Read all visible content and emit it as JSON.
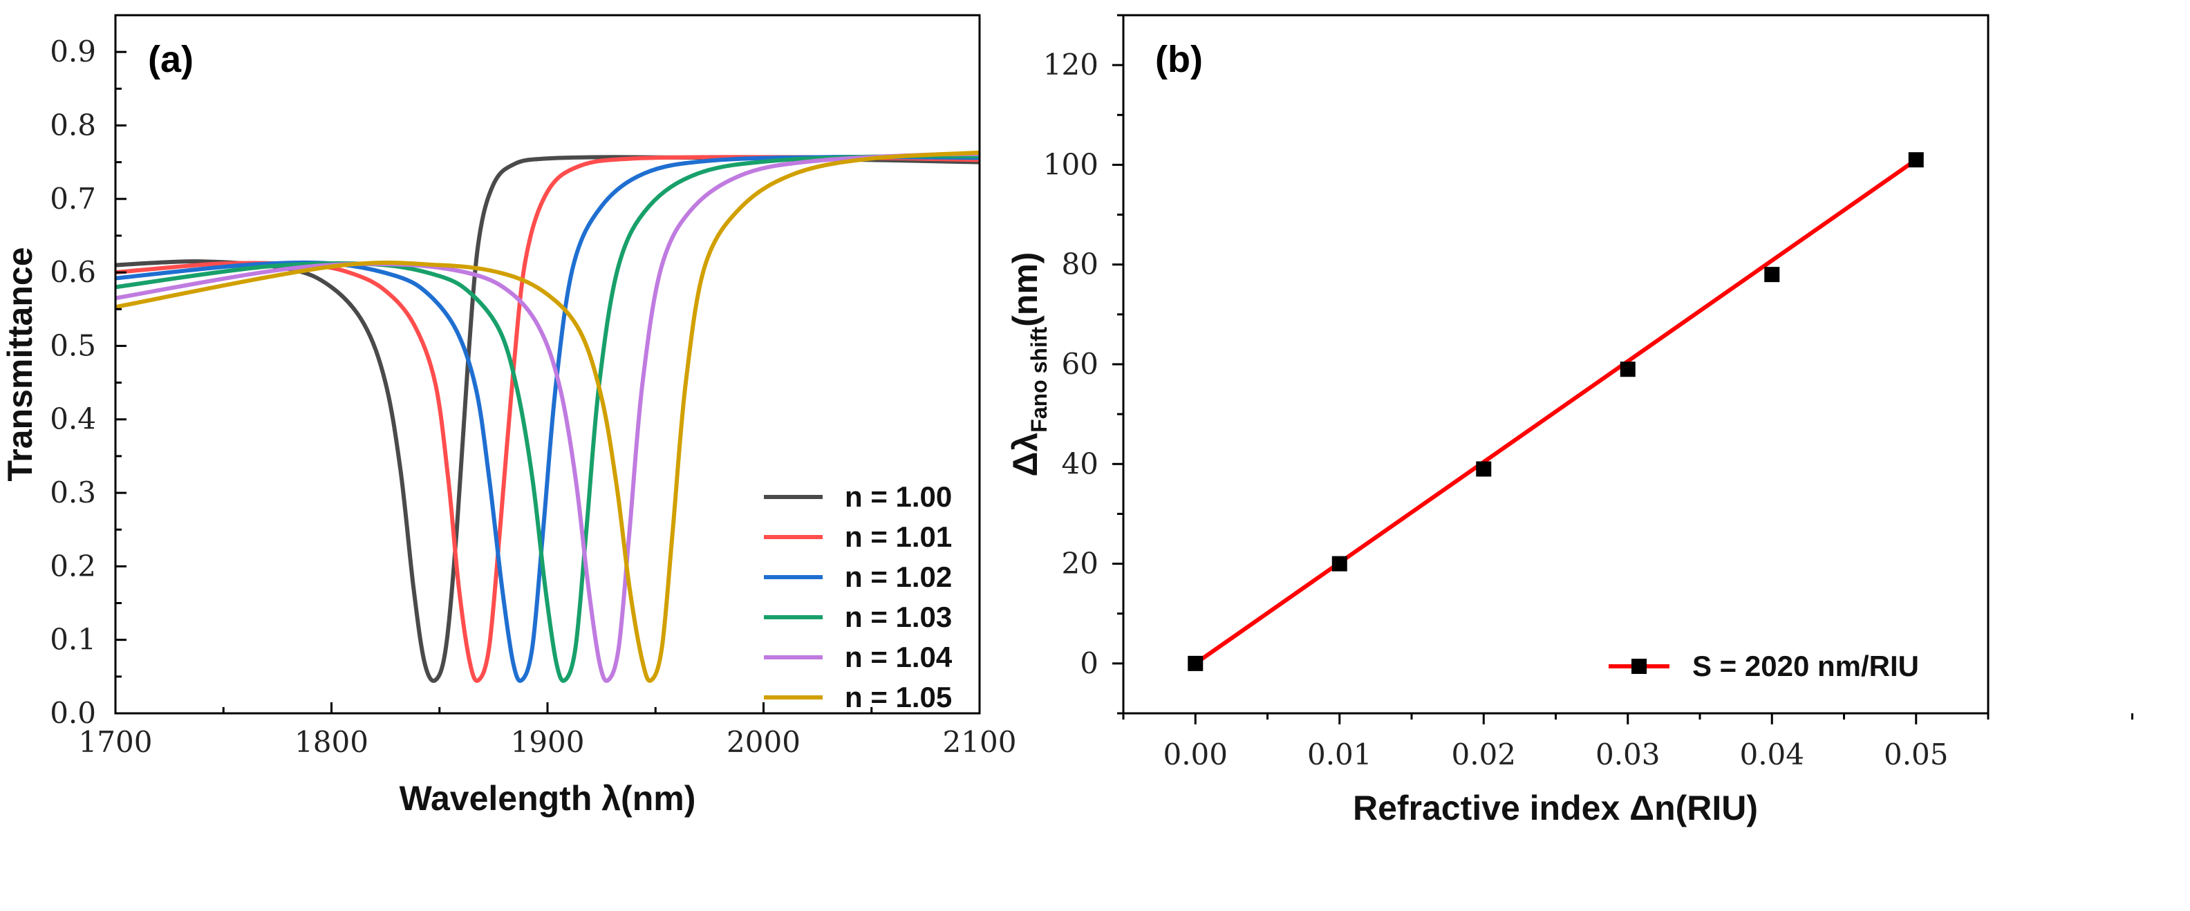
{
  "chart_data": [
    {
      "type": "line",
      "panel_label": "(a)",
      "xlabel": "Wavelength λ(nm)",
      "ylabel": "Transmittance",
      "xlim": [
        1700,
        2100
      ],
      "ylim": [
        0.0,
        0.95
      ],
      "x_ticks": [
        "1700",
        "1800",
        "1900",
        "2000",
        "2100"
      ],
      "y_ticks": [
        "0.0",
        "0.1",
        "0.2",
        "0.3",
        "0.4",
        "0.5",
        "0.6",
        "0.7",
        "0.8",
        "0.9"
      ],
      "grid": false,
      "legend_position": "lower-right",
      "series": [
        {
          "name": "n = 1.00",
          "color": "#4a4a4a",
          "x": [
            1700,
            1740,
            1780,
            1800,
            1815,
            1825,
            1832,
            1838,
            1843,
            1848,
            1853,
            1858,
            1863,
            1868,
            1875,
            1885,
            1900,
            1930,
            1980,
            2050,
            2100
          ],
          "y": [
            0.61,
            0.615,
            0.605,
            0.58,
            0.53,
            0.45,
            0.33,
            0.17,
            0.07,
            0.045,
            0.09,
            0.25,
            0.47,
            0.64,
            0.72,
            0.748,
            0.755,
            0.757,
            0.756,
            0.753,
            0.75
          ]
        },
        {
          "name": "n = 1.01",
          "color": "#ff4d4d",
          "x": [
            1700,
            1750,
            1790,
            1810,
            1825,
            1838,
            1848,
            1854,
            1859,
            1864,
            1868,
            1873,
            1878,
            1884,
            1890,
            1900,
            1915,
            1940,
            1990,
            2050,
            2100
          ],
          "y": [
            0.6,
            0.612,
            0.61,
            0.598,
            0.575,
            0.53,
            0.45,
            0.32,
            0.17,
            0.07,
            0.045,
            0.09,
            0.25,
            0.46,
            0.62,
            0.71,
            0.745,
            0.755,
            0.757,
            0.756,
            0.753
          ]
        },
        {
          "name": "n = 1.02",
          "color": "#1f6fd1",
          "x": [
            1700,
            1760,
            1800,
            1830,
            1845,
            1858,
            1867,
            1873,
            1879,
            1884,
            1888,
            1893,
            1898,
            1904,
            1912,
            1925,
            1945,
            1975,
            2030,
            2100
          ],
          "y": [
            0.592,
            0.61,
            0.612,
            0.595,
            0.57,
            0.52,
            0.44,
            0.32,
            0.17,
            0.07,
            0.045,
            0.09,
            0.25,
            0.45,
            0.61,
            0.69,
            0.735,
            0.752,
            0.757,
            0.756
          ]
        },
        {
          "name": "n = 1.03",
          "color": "#18a06a",
          "x": [
            1700,
            1770,
            1820,
            1850,
            1865,
            1878,
            1886,
            1893,
            1899,
            1904,
            1908,
            1913,
            1918,
            1924,
            1933,
            1947,
            1970,
            2005,
            2060,
            2100
          ],
          "y": [
            0.58,
            0.608,
            0.611,
            0.595,
            0.57,
            0.52,
            0.44,
            0.32,
            0.17,
            0.07,
            0.045,
            0.09,
            0.25,
            0.45,
            0.61,
            0.69,
            0.735,
            0.752,
            0.758,
            0.758
          ]
        },
        {
          "name": "n = 1.04",
          "color": "#c07be0",
          "x": [
            1700,
            1780,
            1830,
            1865,
            1884,
            1897,
            1906,
            1913,
            1919,
            1924,
            1928,
            1933,
            1938,
            1944,
            1953,
            1968,
            1992,
            2025,
            2075,
            2100
          ],
          "y": [
            0.565,
            0.605,
            0.611,
            0.598,
            0.57,
            0.52,
            0.44,
            0.32,
            0.17,
            0.07,
            0.045,
            0.09,
            0.25,
            0.45,
            0.61,
            0.69,
            0.735,
            0.752,
            0.76,
            0.761
          ]
        },
        {
          "name": "n = 1.05",
          "color": "#d1a000",
          "x": [
            1700,
            1800,
            1850,
            1880,
            1900,
            1915,
            1925,
            1932,
            1938,
            1944,
            1948,
            1953,
            1958,
            1964,
            1973,
            1990,
            2015,
            2050,
            2100
          ],
          "y": [
            0.553,
            0.608,
            0.61,
            0.598,
            0.57,
            0.52,
            0.43,
            0.31,
            0.17,
            0.07,
            0.045,
            0.09,
            0.25,
            0.45,
            0.61,
            0.69,
            0.735,
            0.755,
            0.763
          ]
        }
      ]
    },
    {
      "type": "scatter",
      "panel_label": "(b)",
      "xlabel": "Refractive index Δn(RIU)",
      "ylabel_main": "Δλ",
      "ylabel_sub": "Fano shift",
      "ylabel_unit": "(nm)",
      "xlim": [
        -0.005,
        0.055
      ],
      "ylim": [
        -10,
        130
      ],
      "x_ticks": [
        "0.00",
        "0.01",
        "0.02",
        "0.03",
        "0.04",
        "0.05"
      ],
      "y_ticks": [
        "0",
        "20",
        "40",
        "60",
        "80",
        "100",
        "120"
      ],
      "grid": false,
      "legend_position": "lower-right",
      "series": [
        {
          "name": "S = 2020 nm/RIU",
          "color": "#ff0000",
          "marker_color": "#000000",
          "x": [
            0.0,
            0.01,
            0.02,
            0.03,
            0.04,
            0.05
          ],
          "y": [
            0,
            20,
            39,
            59,
            78,
            101
          ],
          "fit": {
            "x": [
              0.0,
              0.05
            ],
            "y": [
              0,
              101
            ]
          }
        }
      ]
    }
  ]
}
